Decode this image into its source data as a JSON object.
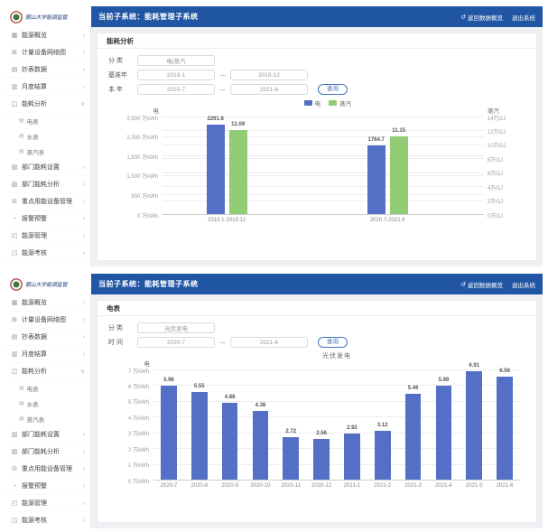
{
  "app": {
    "logo_text": "麓山大学能源监管",
    "header_title": "当前子系统：能耗管理子系统",
    "header_links": [
      "返回数据概览",
      "退出系统"
    ],
    "icon_glyphs": {
      "overview-icon": "▦",
      "network-icon": "⊞",
      "meter-read-icon": "▤",
      "monthly-icon": "▥",
      "analysis-icon": "◫",
      "dept-config-icon": "▧",
      "dept-analysis-icon": "▨",
      "key-device-icon": "⊟",
      "alarm-icon": "◔",
      "energy-mgmt-icon": "◰",
      "assessment-icon": "◳",
      "doc-icon": "▤",
      "chevron-collapsed": "‹",
      "chevron-expanded": "∨",
      "return-icon": "↺"
    },
    "sidebar": {
      "items": [
        {
          "label": "能源概览",
          "icon": "overview-icon",
          "expanded": false
        },
        {
          "label": "计量设备网络图",
          "icon": "network-icon",
          "expanded": false
        },
        {
          "label": "抄表数据",
          "icon": "meter-read-icon",
          "expanded": false
        },
        {
          "label": "月度结算",
          "icon": "monthly-icon",
          "expanded": false
        },
        {
          "label": "能耗分析",
          "icon": "analysis-icon",
          "expanded": true,
          "children": [
            "电表",
            "水表",
            "蒸汽表"
          ]
        },
        {
          "label": "部门能耗设置",
          "icon": "dept-config-icon",
          "expanded": false
        },
        {
          "label": "部门能耗分析",
          "icon": "dept-analysis-icon",
          "expanded": false
        },
        {
          "label": "重点用能设备管理",
          "icon": "key-device-icon",
          "expanded": false
        },
        {
          "label": "报警预警",
          "icon": "alarm-icon",
          "expanded": false
        },
        {
          "label": "能源管理",
          "icon": "energy-mgmt-icon",
          "expanded": false
        },
        {
          "label": "能源考核",
          "icon": "assessment-icon",
          "expanded": false
        }
      ]
    }
  },
  "panel1": {
    "title": "能耗分析",
    "form": {
      "category_label": "分 类",
      "category_value": "电|蒸汽",
      "base_label": "基准年",
      "base_from": "2019-1",
      "base_to": "2019-12",
      "current_label": "本 年",
      "current_from": "2020-7",
      "current_to": "2021-6",
      "separator": "—",
      "search_label": "查询"
    }
  },
  "panel2": {
    "title": "电表",
    "form": {
      "category_label": "分 类",
      "category_value": "光伏发电",
      "time_label": "时 间",
      "from": "2020-7",
      "to": "2021-6",
      "separator": "—",
      "search_label": "查询"
    }
  },
  "chart_data": [
    {
      "type": "bar",
      "title": "",
      "categories": [
        "2019.1-2019.12",
        "2020.7-2021.6"
      ],
      "series": [
        {
          "name": "电",
          "unit": "万kWh",
          "axis": "left",
          "color": "#5470c6",
          "values": [
            2291.8,
            1764.7
          ]
        },
        {
          "name": "蒸汽",
          "unit": "万GJ",
          "axis": "right",
          "color": "#91cc75",
          "values": [
            12.09,
            11.15
          ]
        }
      ],
      "left_axis": {
        "title": "电",
        "min": 0,
        "max": 2500,
        "ticks": [
          "2,500 万kWh",
          "2,000 万kWh",
          "1,500 万kWh",
          "1,000 万kWh",
          "500 万kWh",
          "0 万kWh"
        ]
      },
      "right_axis": {
        "title": "蒸汽",
        "min": 0,
        "max": 14,
        "ticks": [
          "14万GJ",
          "12万GJ",
          "10万GJ",
          "8万GJ",
          "6万GJ",
          "4万GJ",
          "2万GJ",
          "0万GJ"
        ]
      },
      "legend": [
        "电",
        "蒸汽"
      ],
      "legend_position": "top-center",
      "grid": true
    },
    {
      "type": "bar",
      "title": "光伏发电",
      "categories": [
        "2020-7",
        "2020-8",
        "2020-9",
        "2020-10",
        "2020-11",
        "2020-12",
        "2021-1",
        "2021-2",
        "2021-3",
        "2021-4",
        "2021-5",
        "2021-6"
      ],
      "series": [
        {
          "name": "电",
          "unit": "万kWh",
          "axis": "left",
          "color": "#5470c6",
          "values": [
            5.98,
            5.55,
            4.88,
            4.38,
            2.72,
            2.56,
            2.92,
            3.12,
            5.46,
            5.99,
            6.91,
            6.56
          ]
        }
      ],
      "left_axis": {
        "title": "电",
        "min": 0,
        "max": 7,
        "ticks": [
          "7 万kWh",
          "6 万kWh",
          "5 万kWh",
          "4 万kWh",
          "3 万kWh",
          "2 万kWh",
          "1 万kWh",
          "0 万kWh"
        ]
      },
      "legend": [],
      "grid": true
    }
  ]
}
